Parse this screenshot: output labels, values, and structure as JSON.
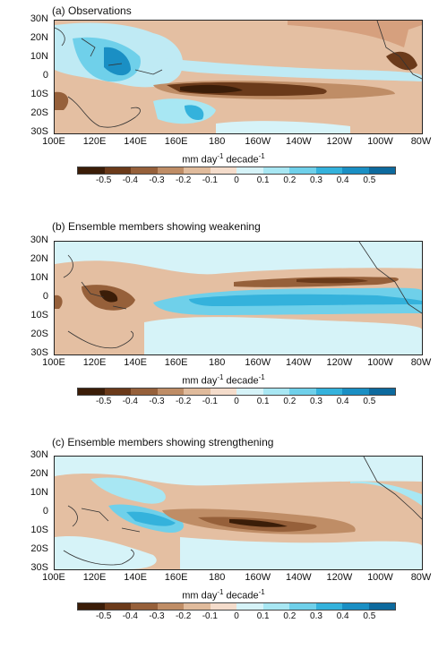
{
  "panels": [
    {
      "title": "(a) Observations"
    },
    {
      "title": "(b) Ensemble members showing weakening"
    },
    {
      "title": "(c) Ensemble members showing strengthening"
    }
  ],
  "axes": {
    "lat_labels": [
      "30N",
      "20N",
      "10N",
      "0",
      "10S",
      "20S",
      "30S"
    ],
    "lon_labels": [
      "100E",
      "120E",
      "140E",
      "160E",
      "180",
      "160W",
      "140W",
      "120W",
      "100W",
      "80W"
    ]
  },
  "colorbar": {
    "title_main": "mm day",
    "title_sup1": "-1",
    "title_mid": " decade",
    "title_sup2": "-1",
    "tick_labels": [
      "-0.5",
      "-0.4",
      "-0.3",
      "-0.2",
      "-0.1",
      "0",
      "0.1",
      "0.2",
      "0.3",
      "0.4",
      "0.5"
    ],
    "colors": [
      "#3b1d08",
      "#6b3a1a",
      "#96603a",
      "#bf8d66",
      "#e0bb9c",
      "#f4dccb",
      "#d6f3f8",
      "#a8e7f3",
      "#6fd0ea",
      "#34b2dc",
      "#1a8fc4",
      "#0d6a9e"
    ]
  }
}
